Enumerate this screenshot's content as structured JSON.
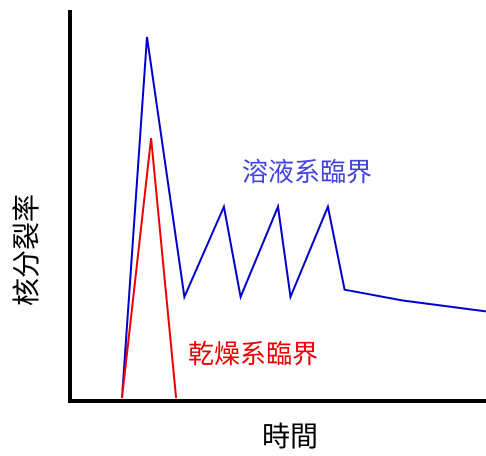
{
  "chart_data": {
    "type": "line",
    "xlabel": "時間",
    "ylabel": "核分裂率",
    "xlim": [
      0,
      100
    ],
    "ylim": [
      0,
      100
    ],
    "grid": false,
    "series": [
      {
        "name": "溶液系臨界",
        "color": "#0000cc",
        "x": [
          12.5,
          18.5,
          27.5,
          37,
          41,
          50,
          53,
          62,
          66,
          80,
          100
        ],
        "y": [
          0,
          100,
          28,
          53,
          28,
          53,
          28,
          53,
          30,
          27,
          24
        ]
      },
      {
        "name": "乾燥系臨界",
        "color": "#ee0000",
        "x": [
          12.5,
          19.5,
          25.5
        ],
        "y": [
          0,
          72,
          0
        ]
      }
    ]
  }
}
